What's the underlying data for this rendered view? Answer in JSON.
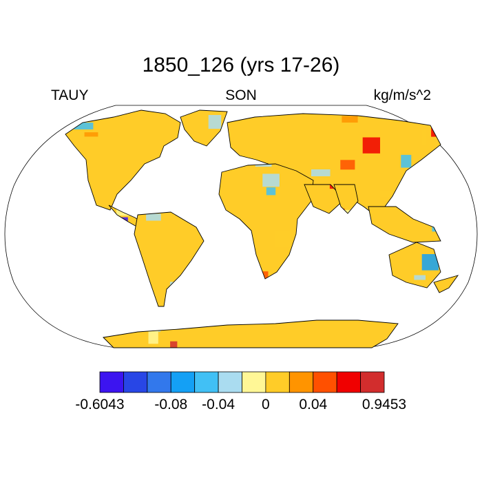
{
  "header": {
    "title": "1850_126 (yrs 17-26)",
    "left_label": "TAUY",
    "center_label": "SON",
    "right_label": "kg/m/s^2"
  },
  "colorbar": {
    "colors": [
      "#3c14f0",
      "#2846e6",
      "#3278ec",
      "#14a0f5",
      "#41c0f5",
      "#aadcf0",
      "#fff796",
      "#ffcc28",
      "#ff9400",
      "#ff5000",
      "#f00000",
      "#d22d2d"
    ],
    "labels": [
      "-0.6043",
      "-0.08",
      "-0.04",
      "0",
      "0.04",
      "0.9453"
    ]
  },
  "map": {
    "projection": "Robinson",
    "land_fill_palette": "colorbar.colors",
    "ocean_color": "#ffffff",
    "coastline_color": "#000000"
  }
}
